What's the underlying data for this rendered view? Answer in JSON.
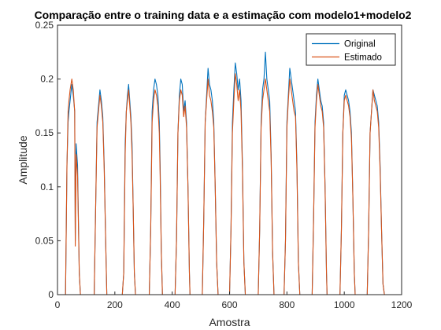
{
  "chart_data": {
    "type": "line",
    "title": "Comparação entre o training data e a estimação com modelo1+modelo2",
    "xlabel": "Amostra",
    "ylabel": "Amplitude",
    "xlim": [
      0,
      1200
    ],
    "ylim": [
      0,
      0.25
    ],
    "xticks": [
      0,
      200,
      400,
      600,
      800,
      1000,
      1200
    ],
    "xtick_labels": [
      "0",
      "200",
      "400",
      "600",
      "800",
      "1000",
      "1200"
    ],
    "yticks": [
      0,
      0.05,
      0.1,
      0.15,
      0.2,
      0.25
    ],
    "ytick_labels": [
      "0",
      "0.05",
      "0.1",
      "0.15",
      "0.2",
      "0.25"
    ],
    "grid": false,
    "legend_position": "top-right",
    "series": [
      {
        "name": "Original",
        "color": "#0072BD",
        "x": [
          0,
          28,
          33,
          37,
          40,
          44,
          50,
          55,
          60,
          62,
          65,
          70,
          76,
          80,
          128,
          133,
          138,
          143,
          148,
          153,
          158,
          163,
          168,
          172,
          226,
          231,
          236,
          240,
          244,
          248,
          252,
          256,
          260,
          264,
          268,
          272,
          320,
          325,
          330,
          335,
          340,
          345,
          350,
          355,
          358,
          362,
          366,
          410,
          415,
          420,
          425,
          430,
          435,
          440,
          445,
          450,
          455,
          460,
          462,
          505,
          510,
          515,
          520,
          525,
          530,
          535,
          540,
          545,
          550,
          555,
          560,
          600,
          605,
          610,
          615,
          620,
          625,
          630,
          635,
          640,
          645,
          650,
          655,
          700,
          705,
          710,
          715,
          720,
          725,
          730,
          735,
          740,
          745,
          750,
          755,
          790,
          795,
          800,
          805,
          810,
          815,
          820,
          825,
          830,
          835,
          840,
          845,
          888,
          893,
          898,
          903,
          908,
          913,
          918,
          923,
          928,
          933,
          938,
          940,
          985,
          990,
          995,
          1000,
          1005,
          1010,
          1015,
          1020,
          1025,
          1030,
          1035,
          1038,
          1080,
          1085,
          1090,
          1095,
          1100,
          1105,
          1110,
          1115,
          1120,
          1125,
          1130,
          1135,
          1140,
          1200
        ],
        "y": [
          0,
          0,
          0.12,
          0.16,
          0.17,
          0.18,
          0.195,
          0.185,
          0.17,
          0.05,
          0.14,
          0.12,
          0.02,
          0,
          0,
          0.08,
          0.16,
          0.175,
          0.19,
          0.18,
          0.165,
          0.12,
          0.05,
          0,
          0,
          0.02,
          0.14,
          0.17,
          0.185,
          0.195,
          0.18,
          0.165,
          0.14,
          0.08,
          0.02,
          0,
          0,
          0.06,
          0.17,
          0.19,
          0.2,
          0.195,
          0.185,
          0.16,
          0.12,
          0.04,
          0,
          0,
          0.05,
          0.15,
          0.185,
          0.2,
          0.195,
          0.17,
          0.18,
          0.16,
          0.1,
          0.02,
          0,
          0,
          0.07,
          0.16,
          0.185,
          0.21,
          0.195,
          0.19,
          0.18,
          0.16,
          0.1,
          0.03,
          0,
          0,
          0.06,
          0.16,
          0.19,
          0.215,
          0.205,
          0.19,
          0.2,
          0.18,
          0.12,
          0.03,
          0,
          0,
          0.06,
          0.16,
          0.19,
          0.2,
          0.225,
          0.2,
          0.19,
          0.18,
          0.13,
          0.04,
          0,
          0,
          0.05,
          0.16,
          0.185,
          0.21,
          0.2,
          0.19,
          0.18,
          0.17,
          0.12,
          0.03,
          0,
          0,
          0.07,
          0.16,
          0.185,
          0.2,
          0.19,
          0.18,
          0.175,
          0.16,
          0.1,
          0.02,
          0,
          0,
          0.06,
          0.15,
          0.185,
          0.19,
          0.185,
          0.18,
          0.17,
          0.15,
          0.09,
          0.02,
          0,
          0,
          0.06,
          0.15,
          0.17,
          0.19,
          0.185,
          0.18,
          0.175,
          0.16,
          0.12,
          0.06,
          0.01,
          0,
          0
        ]
      },
      {
        "name": "Estimado",
        "color": "#D95319",
        "x": [
          0,
          28,
          33,
          37,
          40,
          44,
          50,
          55,
          60,
          62,
          65,
          70,
          76,
          80,
          128,
          133,
          138,
          143,
          148,
          153,
          158,
          163,
          168,
          172,
          226,
          231,
          236,
          240,
          244,
          248,
          252,
          256,
          260,
          264,
          268,
          272,
          320,
          325,
          330,
          335,
          340,
          345,
          350,
          355,
          358,
          362,
          366,
          410,
          415,
          420,
          425,
          430,
          435,
          440,
          445,
          450,
          455,
          460,
          462,
          505,
          510,
          515,
          520,
          525,
          530,
          535,
          540,
          545,
          550,
          555,
          560,
          600,
          605,
          610,
          615,
          620,
          625,
          630,
          635,
          640,
          645,
          650,
          655,
          700,
          705,
          710,
          715,
          720,
          725,
          730,
          735,
          740,
          745,
          750,
          755,
          790,
          795,
          800,
          805,
          810,
          815,
          820,
          825,
          830,
          835,
          840,
          845,
          888,
          893,
          898,
          903,
          908,
          913,
          918,
          923,
          928,
          933,
          938,
          940,
          985,
          990,
          995,
          1000,
          1005,
          1010,
          1015,
          1020,
          1025,
          1030,
          1035,
          1038,
          1080,
          1085,
          1090,
          1095,
          1100,
          1105,
          1110,
          1115,
          1120,
          1125,
          1130,
          1135,
          1140,
          1200
        ],
        "y": [
          0,
          0,
          0.12,
          0.17,
          0.18,
          0.19,
          0.2,
          0.19,
          0.17,
          0.045,
          0.13,
          0.11,
          0.02,
          0,
          0,
          0.08,
          0.155,
          0.17,
          0.185,
          0.175,
          0.16,
          0.115,
          0.05,
          0,
          0,
          0.02,
          0.13,
          0.17,
          0.18,
          0.19,
          0.175,
          0.16,
          0.13,
          0.08,
          0.02,
          0,
          0,
          0.06,
          0.16,
          0.18,
          0.19,
          0.185,
          0.175,
          0.15,
          0.11,
          0.04,
          0,
          0,
          0.05,
          0.15,
          0.18,
          0.19,
          0.185,
          0.165,
          0.175,
          0.155,
          0.1,
          0.02,
          0,
          0,
          0.07,
          0.16,
          0.18,
          0.2,
          0.185,
          0.18,
          0.17,
          0.155,
          0.1,
          0.03,
          0,
          0,
          0.06,
          0.15,
          0.18,
          0.205,
          0.195,
          0.18,
          0.19,
          0.17,
          0.115,
          0.03,
          0,
          0,
          0.06,
          0.155,
          0.18,
          0.19,
          0.2,
          0.19,
          0.18,
          0.17,
          0.125,
          0.04,
          0,
          0,
          0.05,
          0.155,
          0.18,
          0.2,
          0.19,
          0.18,
          0.17,
          0.165,
          0.115,
          0.03,
          0,
          0,
          0.07,
          0.155,
          0.18,
          0.195,
          0.185,
          0.175,
          0.17,
          0.155,
          0.1,
          0.02,
          0,
          0,
          0.06,
          0.15,
          0.18,
          0.185,
          0.18,
          0.175,
          0.165,
          0.145,
          0.09,
          0.02,
          0,
          0,
          0.06,
          0.15,
          0.17,
          0.19,
          0.18,
          0.175,
          0.17,
          0.155,
          0.115,
          0.06,
          0.01,
          0,
          0
        ]
      }
    ]
  }
}
